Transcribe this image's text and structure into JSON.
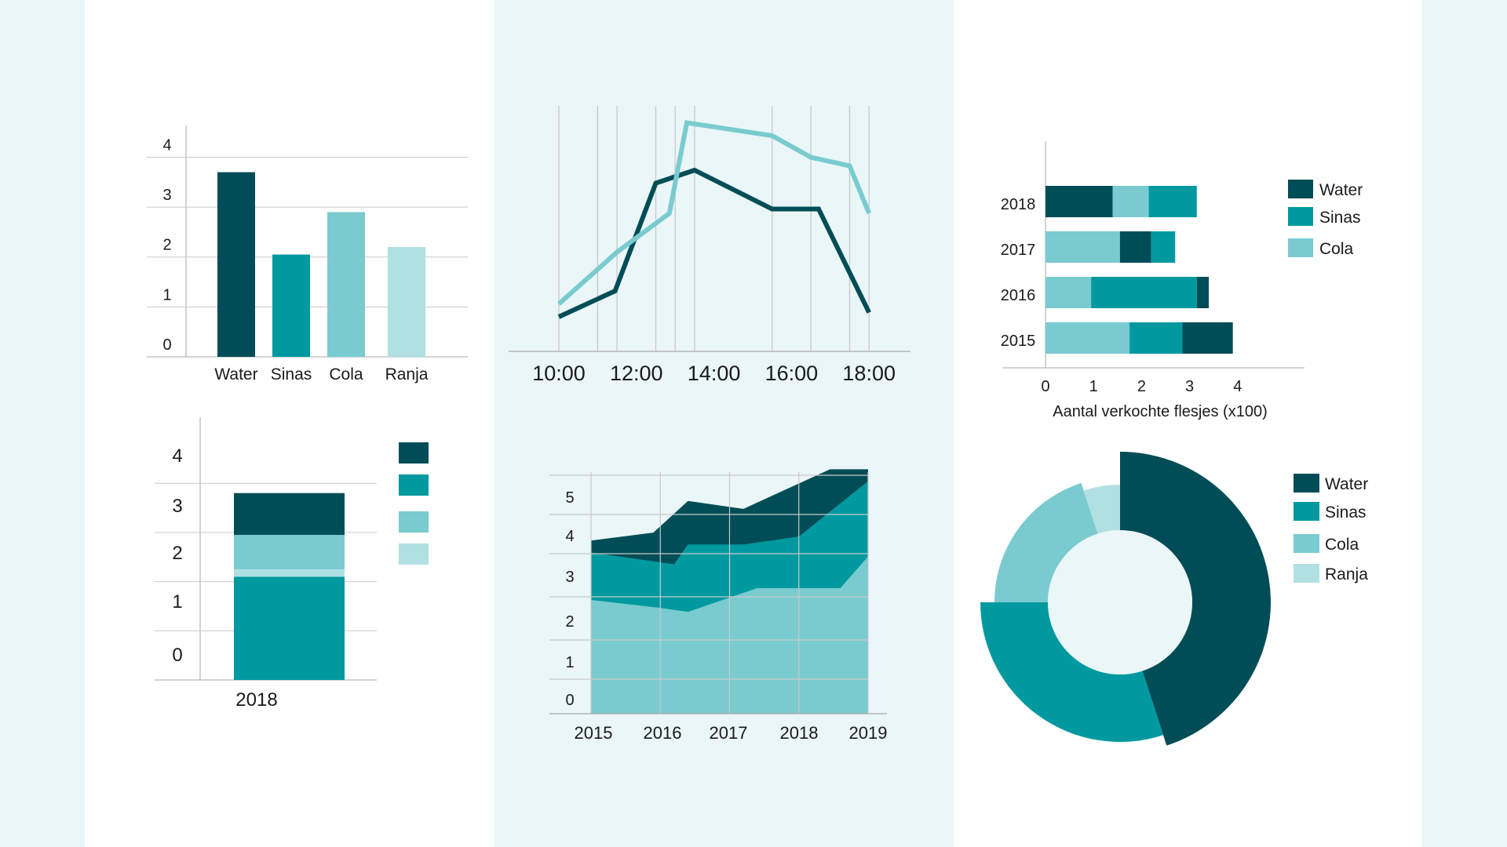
{
  "palette": {
    "water": "#004d57",
    "sinas": "#00999f",
    "cola": "#79cbd0",
    "ranja": "#b1e0e3",
    "panel": "#eaf6f7",
    "grid": "#c9c9c9",
    "axis": "#aaaaaa"
  },
  "chart_data": [
    {
      "type": "bar",
      "categories": [
        "Water",
        "Sinas",
        "Cola",
        "Ranja"
      ],
      "values": [
        3.7,
        2.05,
        2.9,
        2.2
      ],
      "colors": [
        "#004d57",
        "#00999f",
        "#79cbd0",
        "#b1e0e3"
      ],
      "yticks": [
        0,
        1,
        2,
        3,
        4
      ],
      "ylim": [
        0,
        4.4
      ]
    },
    {
      "type": "line",
      "x": [
        "10:00",
        "11:00",
        "11:30",
        "12:30",
        "13:00",
        "13:30",
        "15:30",
        "16:30",
        "17:30",
        "18:00"
      ],
      "xticks": [
        "10:00",
        "12:00",
        "14:00",
        "16:00",
        "18:00"
      ],
      "series": [
        {
          "color": "#004d57",
          "points": [
            [
              10,
              0.8
            ],
            [
              11.45,
              1.4
            ],
            [
              12.5,
              3.9
            ],
            [
              13.5,
              4.2
            ],
            [
              15.5,
              3.3
            ],
            [
              16.7,
              3.3
            ],
            [
              18,
              0.9
            ]
          ]
        },
        {
          "color": "#79cbd0",
          "points": [
            [
              10,
              1.1
            ],
            [
              11.5,
              2.3
            ],
            [
              12.85,
              3.2
            ],
            [
              13.3,
              5.3
            ],
            [
              15.5,
              5.0
            ],
            [
              16.5,
              4.5
            ],
            [
              17.5,
              4.3
            ],
            [
              18,
              3.2
            ]
          ]
        }
      ],
      "xlim": [
        9.3,
        19
      ],
      "ylim": [
        0,
        6
      ],
      "grid_x": [
        10,
        11,
        11.5,
        12.5,
        13,
        13.5,
        15.5,
        16.5,
        17.5,
        18
      ]
    },
    {
      "type": "bar",
      "orientation": "horizontal",
      "stacked": true,
      "categories": [
        "2018",
        "2017",
        "2016",
        "2015"
      ],
      "segments": [
        [
          {
            "color": "#004d57",
            "value": 1.4
          },
          {
            "color": "#79cbd0",
            "value": 0.75
          },
          {
            "color": "#00999f",
            "value": 1.0
          }
        ],
        [
          {
            "color": "#79cbd0",
            "value": 1.55
          },
          {
            "color": "#004d57",
            "value": 0.65
          },
          {
            "color": "#00999f",
            "value": 0.5
          }
        ],
        [
          {
            "color": "#79cbd0",
            "value": 0.95
          },
          {
            "color": "#00999f",
            "value": 2.2
          },
          {
            "color": "#004d57",
            "value": 0.25
          }
        ],
        [
          {
            "color": "#79cbd0",
            "value": 1.75
          },
          {
            "color": "#00999f",
            "value": 1.1
          },
          {
            "color": "#004d57",
            "value": 1.05
          }
        ]
      ],
      "xticks": [
        0,
        1,
        2,
        3,
        4
      ],
      "xlim": [
        0,
        5.4
      ],
      "xlabel": "Aantal verkochte flesjes (x100)",
      "legend": [
        {
          "label": "Water",
          "color": "#004d57"
        },
        {
          "label": "Sinas",
          "color": "#00999f"
        },
        {
          "label": "Cola",
          "color": "#79cbd0"
        }
      ],
      "legend_position": "right"
    },
    {
      "type": "bar",
      "stacked": true,
      "categories": [
        "2018"
      ],
      "segments": [
        {
          "color": "#00999f",
          "value": 2.1
        },
        {
          "color": "#b1e0e3",
          "value": 0.15
        },
        {
          "color": "#79cbd0",
          "value": 0.7
        },
        {
          "color": "#004d57",
          "value": 0.85
        }
      ],
      "yticks": [
        0,
        1,
        2,
        3,
        4
      ],
      "ylim": [
        0,
        4.35
      ],
      "legend_swatches": [
        "#004d57",
        "#00999f",
        "#79cbd0",
        "#b1e0e3"
      ]
    },
    {
      "type": "area",
      "stacked": true,
      "x": [
        2015,
        2016,
        2017,
        2018,
        2019
      ],
      "xticks": [
        "2015",
        "2016",
        "2017",
        "2018",
        "2019"
      ],
      "yticks": [
        0,
        1,
        2,
        3,
        4,
        5
      ],
      "series": [
        {
          "color": "#79cbd0",
          "points": [
            [
              2015,
              2.0
            ],
            [
              2016,
              1.8
            ],
            [
              2016.4,
              1.7
            ],
            [
              2017.4,
              2.3
            ],
            [
              2018.6,
              2.3
            ],
            [
              2019,
              3.1
            ]
          ]
        },
        {
          "color": "#00999f",
          "points": [
            [
              2015,
              3.2
            ],
            [
              2016.2,
              2.9
            ],
            [
              2016.4,
              3.4
            ],
            [
              2017.2,
              3.4
            ],
            [
              2018,
              3.6
            ],
            [
              2019,
              5.0
            ]
          ]
        },
        {
          "color": "#004d57",
          "points": [
            [
              2015,
              3.5
            ],
            [
              2015.9,
              3.7
            ],
            [
              2016.4,
              4.5
            ],
            [
              2017.2,
              4.3
            ],
            [
              2018.45,
              5.3
            ],
            [
              2019,
              5.3
            ]
          ]
        }
      ],
      "xlim": [
        2014.6,
        2019.3
      ],
      "ylim": [
        -0.9,
        6.2
      ],
      "grid_x": [
        2015,
        2016,
        2017,
        2018,
        2019
      ]
    },
    {
      "type": "pie",
      "variant": "donut",
      "slices": [
        {
          "label": "Water",
          "value": 45,
          "color": "#004d57"
        },
        {
          "label": "Sinas",
          "value": 30,
          "color": "#00999f"
        },
        {
          "label": "Cola",
          "value": 20,
          "color": "#79cbd0"
        },
        {
          "label": "Ranja",
          "value": 5,
          "color": "#b1e0e3"
        }
      ],
      "legend_position": "right"
    }
  ]
}
